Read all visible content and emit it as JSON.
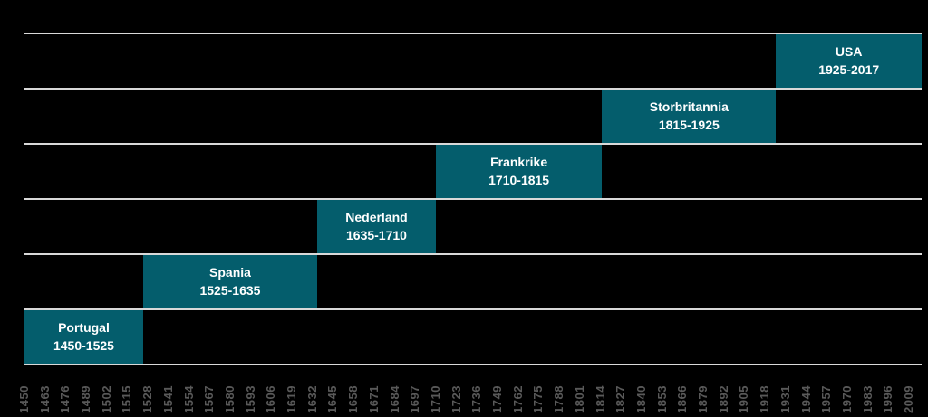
{
  "chart_data": {
    "type": "bar",
    "subtype": "timeline-gantt",
    "title": "",
    "xlabel": "",
    "ylabel": "",
    "grid": "horizontal",
    "legend": "none",
    "rows": 6,
    "bars": [
      {
        "name": "Portugal",
        "years_label": "1450-1525",
        "start": 1450,
        "end": 1525,
        "row": 5
      },
      {
        "name": "Spania",
        "years_label": "1525-1635",
        "start": 1525,
        "end": 1635,
        "row": 4
      },
      {
        "name": "Nederland",
        "years_label": "1635-1710",
        "start": 1635,
        "end": 1710,
        "row": 3
      },
      {
        "name": "Frankrike",
        "years_label": "1710-1815",
        "start": 1710,
        "end": 1815,
        "row": 2
      },
      {
        "name": "Storbritannia",
        "years_label": "1815-1925",
        "start": 1815,
        "end": 1925,
        "row": 1
      },
      {
        "name": "USA",
        "years_label": "1925-2017",
        "start": 1925,
        "end": 2017,
        "row": 0
      }
    ],
    "x_axis": {
      "min": 1450,
      "max": 2017,
      "tick_step": 13,
      "tick_labels": [
        "1450",
        "1463",
        "1476",
        "1489",
        "1502",
        "1515",
        "1528",
        "1541",
        "1554",
        "1567",
        "1580",
        "1593",
        "1606",
        "1619",
        "1632",
        "1645",
        "1658",
        "1671",
        "1684",
        "1697",
        "1710",
        "1723",
        "1736",
        "1749",
        "1762",
        "1775",
        "1788",
        "1801",
        "1814",
        "1827",
        "1840",
        "1853",
        "1866",
        "1879",
        "1892",
        "1905",
        "1918",
        "1931",
        "1944",
        "1957",
        "1970",
        "1983",
        "1996",
        "2009"
      ]
    },
    "colors": {
      "background": "#000000",
      "bar_fill": "#045d6c",
      "bar_text": "#ffffff",
      "gridline": "#d9d9d9",
      "tick_text": "#595959"
    }
  }
}
